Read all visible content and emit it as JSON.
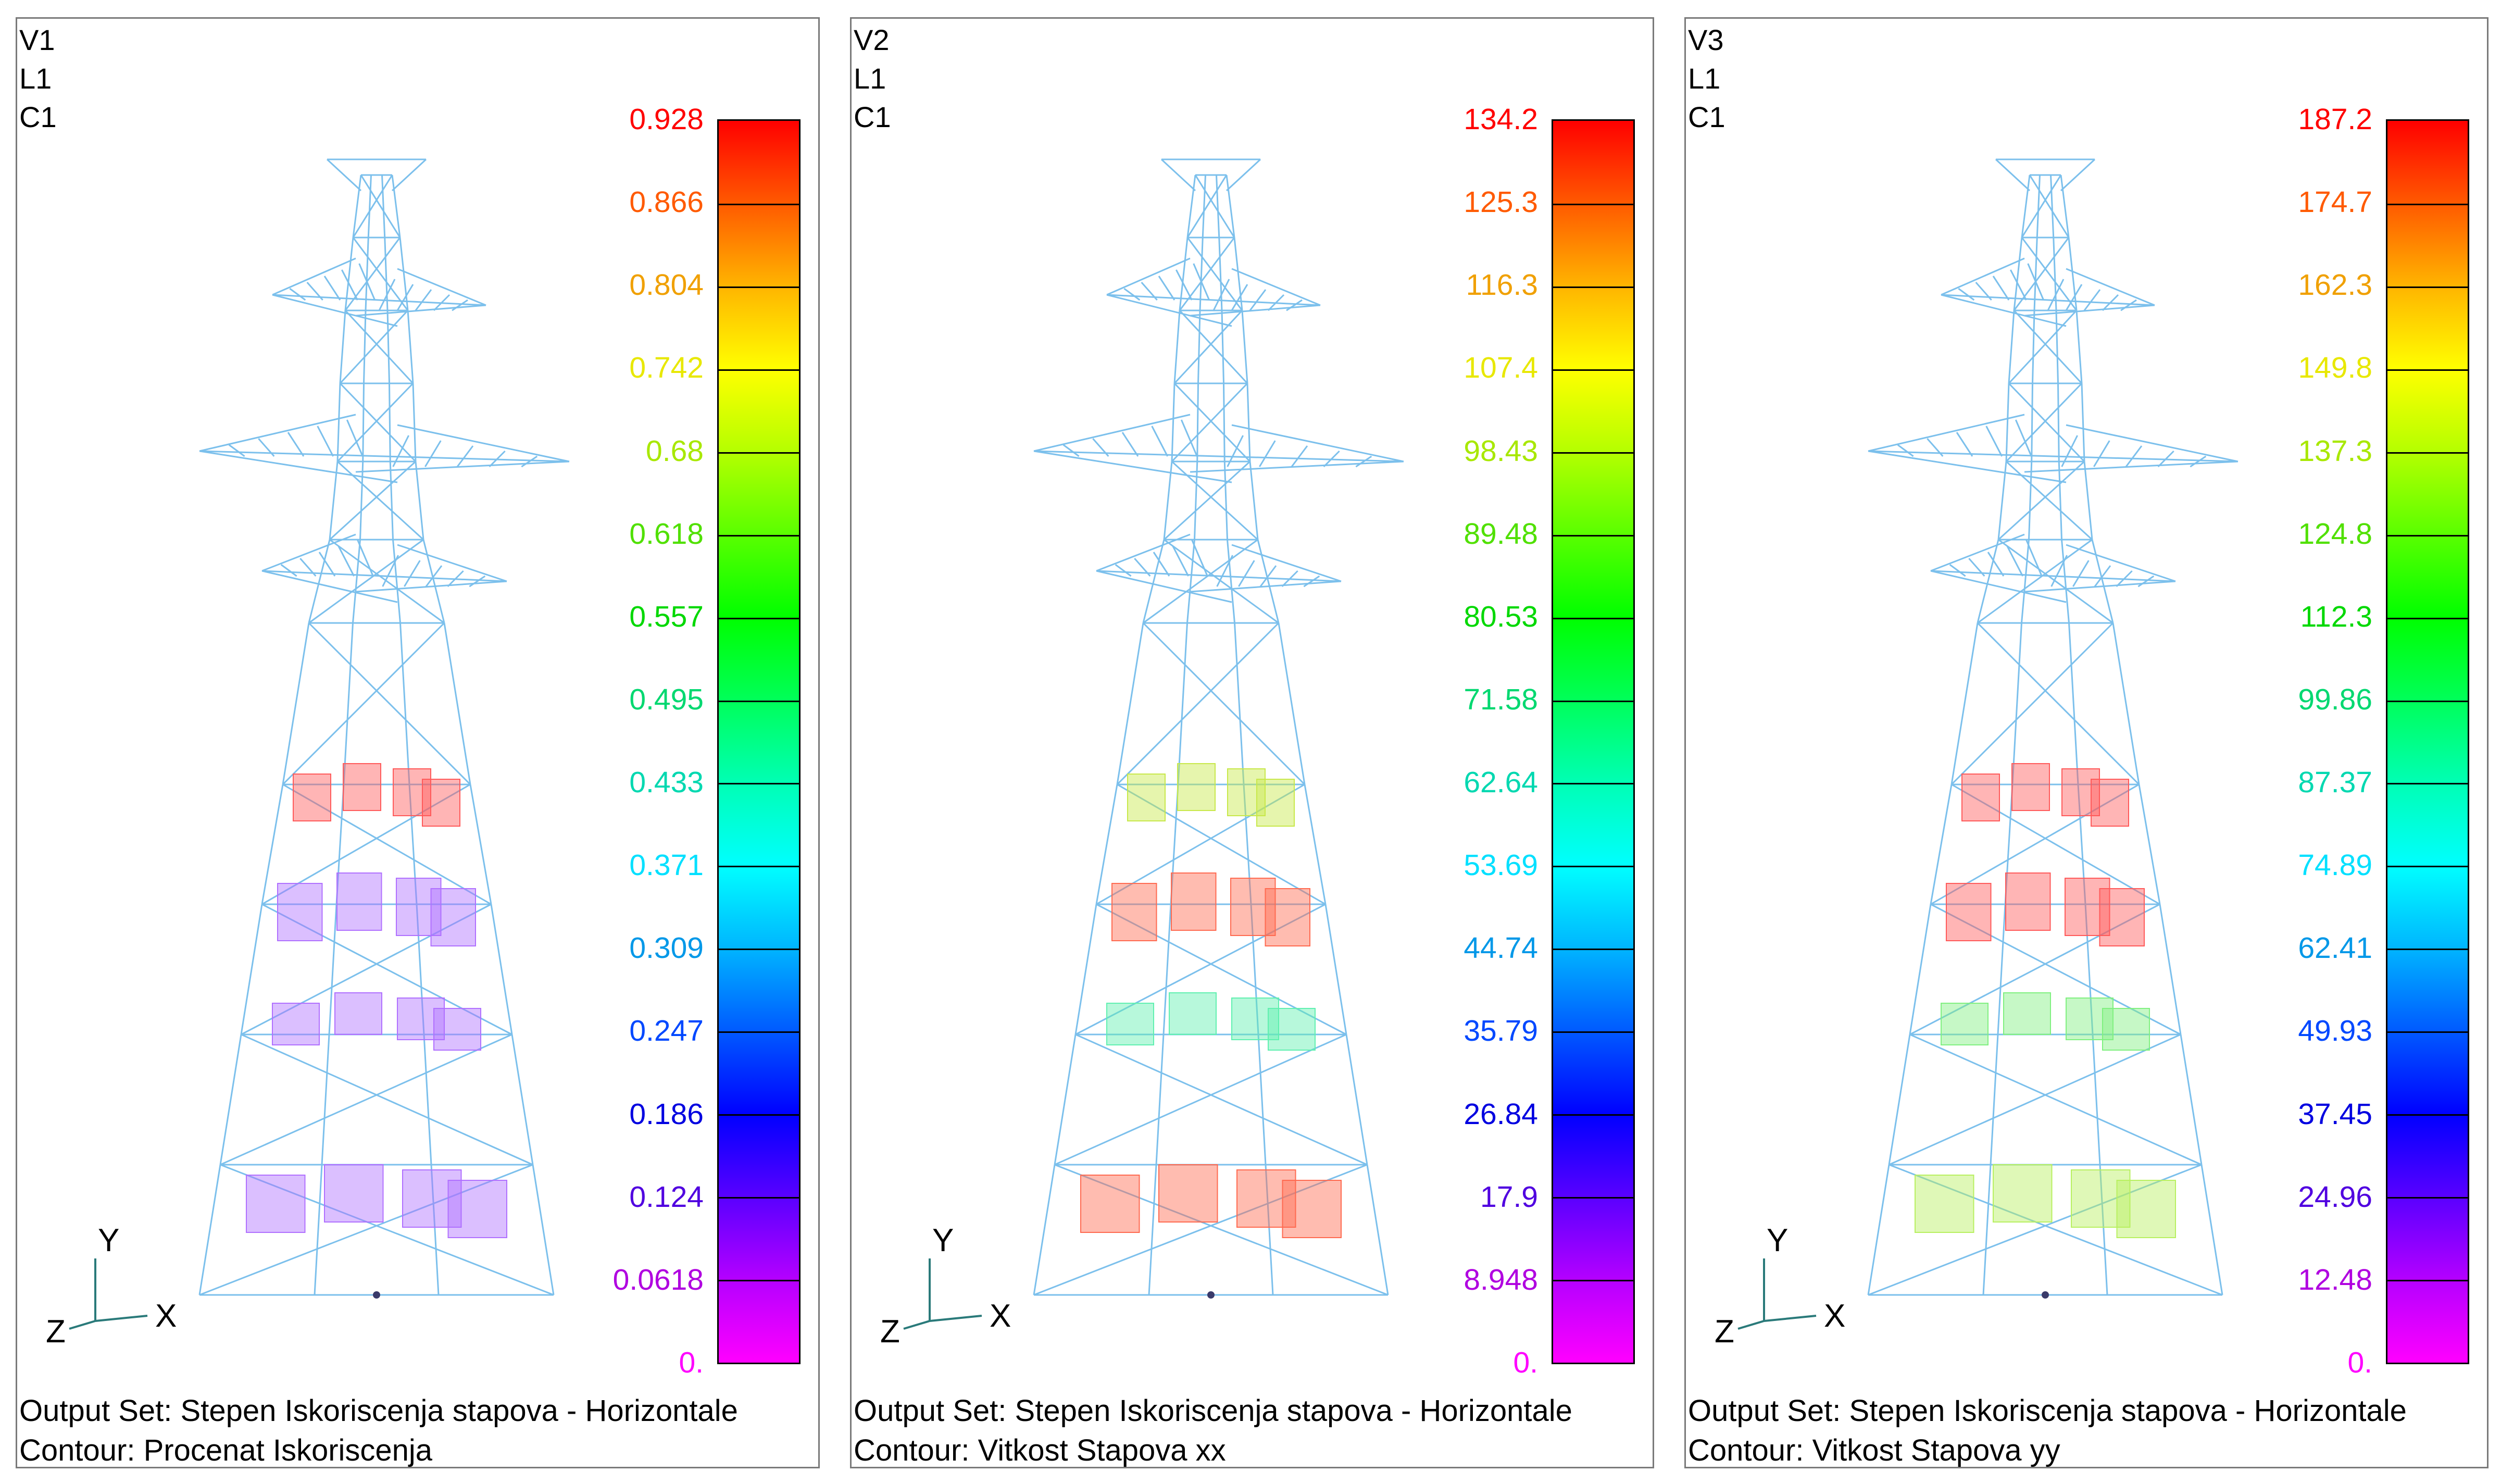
{
  "panels": [
    {
      "view": "V1",
      "layer": "L1",
      "case": "C1",
      "legend": [
        "0.928",
        "0.866",
        "0.804",
        "0.742",
        "0.68",
        "0.618",
        "0.557",
        "0.495",
        "0.433",
        "0.371",
        "0.309",
        "0.247",
        "0.186",
        "0.124",
        "0.0618",
        "0."
      ],
      "output_set": "Output Set: Stepen Iskoriscenja stapova - Horizontale",
      "contour": "Contour: Procenat Iskoriscenja",
      "box_colors": [
        "#ff5a5a",
        "#b070ff",
        "#b070ff",
        "#b070ff"
      ]
    },
    {
      "view": "V2",
      "layer": "L1",
      "case": "C1",
      "legend": [
        "134.2",
        "125.3",
        "116.3",
        "107.4",
        "98.43",
        "89.48",
        "80.53",
        "71.58",
        "62.64",
        "53.69",
        "44.74",
        "35.79",
        "26.84",
        "17.9",
        "8.948",
        "0."
      ],
      "output_set": "Output Set: Stepen Iskoriscenja stapova - Horizontale",
      "contour": "Contour: Vitkost Stapova xx",
      "box_colors": [
        "#c8e84a",
        "#ff6a50",
        "#60f0b0",
        "#ff6a50"
      ]
    },
    {
      "view": "V3",
      "layer": "L1",
      "case": "C1",
      "legend": [
        "187.2",
        "174.7",
        "162.3",
        "149.8",
        "137.3",
        "124.8",
        "112.3",
        "99.86",
        "87.37",
        "74.89",
        "62.41",
        "49.93",
        "37.45",
        "24.96",
        "12.48",
        "0."
      ],
      "output_set": "Output Set: Stepen Iskoriscenja stapova - Horizontale",
      "contour": "Contour: Vitkost Stapova yy",
      "box_colors": [
        "#ff5a5a",
        "#ff5a5a",
        "#80f080",
        "#b8f060"
      ]
    }
  ],
  "legend_colors": [
    "#ff0000",
    "#ff5a00",
    "#ffb400",
    "#ffff00",
    "#b4ff00",
    "#5aff00",
    "#00ff00",
    "#00ff5a",
    "#00ffb4",
    "#00ffff",
    "#00b4ff",
    "#005aff",
    "#0000ff",
    "#5a00ff",
    "#b400ff",
    "#ff00ff"
  ],
  "label_colors": [
    "#ff0000",
    "#ff5a00",
    "#f0a000",
    "#e8e800",
    "#a8e800",
    "#50e000",
    "#00d800",
    "#00d870",
    "#00d8b0",
    "#00e0ff",
    "#0098e8",
    "#0048ff",
    "#0000e0",
    "#5000e0",
    "#b000e0",
    "#ff00ff"
  ],
  "axes": {
    "x": "X",
    "y": "Y",
    "z": "Z"
  },
  "wire_color": "#7cc0ec"
}
